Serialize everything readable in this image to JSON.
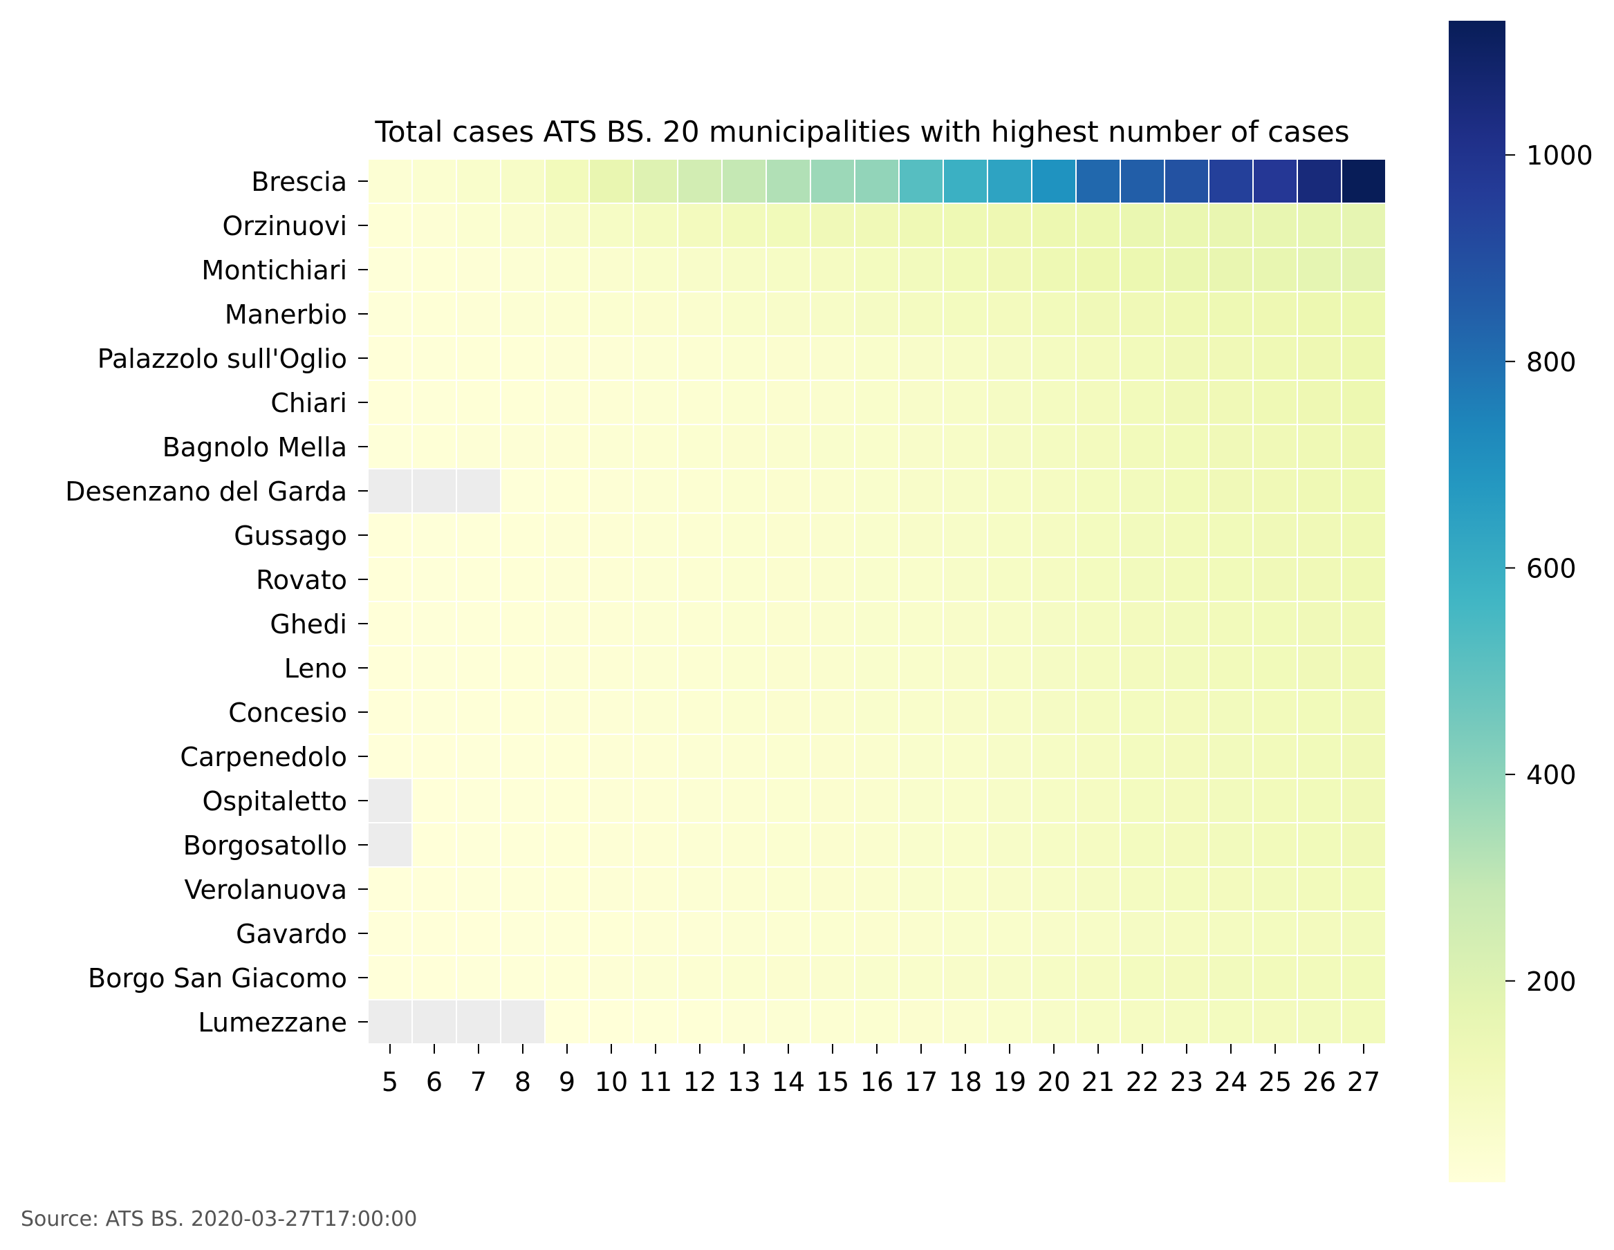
{
  "chart_data": {
    "type": "heatmap",
    "title": "Total cases ATS BS. 20 municipalities with highest number of cases",
    "xlabel": "",
    "ylabel": "",
    "source_note": "Source: ATS BS. 2020-03-27T17:00:00",
    "x_categories": [
      "5",
      "6",
      "7",
      "8",
      "9",
      "10",
      "11",
      "12",
      "13",
      "14",
      "15",
      "16",
      "17",
      "18",
      "19",
      "20",
      "21",
      "22",
      "23",
      "24",
      "25",
      "26",
      "27"
    ],
    "y_categories": [
      "Brescia",
      "Orzinuovi",
      "Montichiari",
      "Manerbio",
      "Palazzolo sull'Oglio",
      "Chiari",
      "Bagnolo Mella",
      "Desenzano del Garda",
      "Gussago",
      "Rovato",
      "Ghedi",
      "Leno",
      "Concesio",
      "Carpenedolo",
      "Ospitaletto",
      "Borgosatollo",
      "Verolanuova",
      "Gavardo",
      "Borgo San Giacomo",
      "Lumezzane"
    ],
    "values": [
      [
        25,
        35,
        55,
        70,
        110,
        160,
        200,
        245,
        290,
        330,
        370,
        390,
        520,
        590,
        640,
        700,
        820,
        850,
        890,
        950,
        980,
        1050,
        1130
      ],
      [
        15,
        22,
        35,
        45,
        60,
        75,
        90,
        100,
        110,
        115,
        120,
        125,
        130,
        135,
        140,
        145,
        150,
        155,
        158,
        160,
        165,
        168,
        172
      ],
      [
        10,
        15,
        20,
        25,
        35,
        45,
        55,
        60,
        70,
        75,
        85,
        95,
        105,
        115,
        125,
        135,
        145,
        150,
        155,
        160,
        165,
        175,
        180
      ],
      [
        10,
        15,
        20,
        25,
        30,
        35,
        40,
        45,
        55,
        60,
        70,
        80,
        90,
        95,
        100,
        110,
        120,
        125,
        130,
        135,
        140,
        145,
        150
      ],
      [
        8,
        12,
        15,
        15,
        18,
        20,
        25,
        30,
        35,
        40,
        45,
        55,
        60,
        70,
        80,
        90,
        100,
        110,
        120,
        125,
        130,
        140,
        145
      ],
      [
        8,
        12,
        15,
        15,
        18,
        22,
        25,
        30,
        35,
        40,
        45,
        55,
        60,
        70,
        80,
        90,
        100,
        110,
        120,
        125,
        130,
        140,
        145
      ],
      [
        10,
        15,
        20,
        20,
        22,
        25,
        30,
        35,
        40,
        45,
        50,
        55,
        60,
        70,
        80,
        90,
        100,
        110,
        115,
        120,
        125,
        130,
        140
      ],
      [
        null,
        null,
        null,
        10,
        15,
        20,
        25,
        30,
        35,
        40,
        45,
        50,
        60,
        65,
        75,
        85,
        95,
        105,
        115,
        120,
        125,
        130,
        135
      ],
      [
        8,
        10,
        12,
        15,
        18,
        22,
        25,
        30,
        35,
        40,
        45,
        50,
        60,
        65,
        75,
        85,
        95,
        105,
        110,
        115,
        120,
        125,
        130
      ],
      [
        8,
        10,
        12,
        15,
        18,
        22,
        25,
        30,
        35,
        40,
        45,
        50,
        55,
        65,
        75,
        85,
        95,
        105,
        110,
        115,
        120,
        125,
        130
      ],
      [
        8,
        10,
        12,
        15,
        18,
        22,
        25,
        30,
        35,
        40,
        45,
        50,
        55,
        60,
        70,
        80,
        90,
        100,
        105,
        110,
        115,
        120,
        125
      ],
      [
        8,
        10,
        12,
        15,
        18,
        22,
        25,
        30,
        35,
        40,
        45,
        50,
        55,
        60,
        70,
        80,
        90,
        100,
        105,
        110,
        115,
        120,
        125
      ],
      [
        8,
        10,
        12,
        15,
        18,
        20,
        25,
        30,
        35,
        40,
        45,
        50,
        55,
        60,
        70,
        80,
        90,
        95,
        100,
        105,
        110,
        115,
        120
      ],
      [
        5,
        8,
        10,
        12,
        15,
        18,
        22,
        25,
        30,
        35,
        40,
        45,
        50,
        55,
        65,
        75,
        85,
        95,
        100,
        105,
        110,
        115,
        120
      ],
      [
        null,
        8,
        10,
        12,
        15,
        18,
        22,
        25,
        30,
        35,
        40,
        45,
        50,
        55,
        65,
        75,
        85,
        95,
        100,
        105,
        110,
        115,
        120
      ],
      [
        null,
        8,
        10,
        12,
        15,
        18,
        22,
        25,
        30,
        35,
        40,
        45,
        50,
        55,
        65,
        75,
        85,
        95,
        100,
        105,
        110,
        115,
        120
      ],
      [
        5,
        8,
        10,
        12,
        15,
        18,
        22,
        25,
        30,
        35,
        40,
        45,
        50,
        55,
        60,
        70,
        80,
        90,
        95,
        100,
        105,
        110,
        115
      ],
      [
        5,
        8,
        8,
        10,
        12,
        15,
        18,
        20,
        25,
        30,
        35,
        40,
        45,
        50,
        55,
        60,
        70,
        80,
        85,
        90,
        95,
        100,
        105
      ],
      [
        5,
        8,
        10,
        12,
        15,
        20,
        25,
        30,
        35,
        40,
        45,
        50,
        55,
        60,
        65,
        75,
        85,
        95,
        100,
        105,
        110,
        110,
        115
      ],
      [
        null,
        null,
        null,
        null,
        5,
        8,
        12,
        15,
        20,
        25,
        30,
        35,
        40,
        45,
        55,
        65,
        75,
        85,
        90,
        95,
        100,
        105,
        110
      ]
    ],
    "colorbar": {
      "min": 5,
      "max": 1130,
      "ticks": [
        200,
        400,
        600,
        800,
        1000
      ],
      "colormap": "YlGnBu"
    },
    "missing_color": "#ececec",
    "grid_line_color": "#ffffff"
  }
}
